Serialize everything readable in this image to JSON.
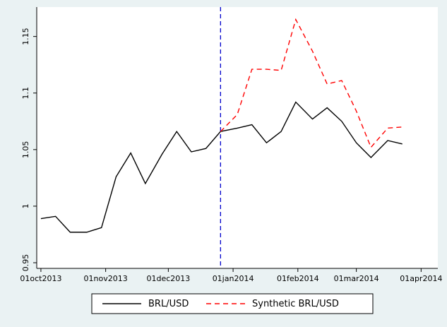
{
  "chart_data": {
    "type": "line",
    "x": [
      "2013-10-01",
      "2013-10-08",
      "2013-10-15",
      "2013-10-23",
      "2013-10-30",
      "2013-11-06",
      "2013-11-13",
      "2013-11-20",
      "2013-11-28",
      "2013-12-05",
      "2013-12-12",
      "2013-12-19",
      "2013-12-26",
      "2014-01-03",
      "2014-01-10",
      "2014-01-17",
      "2014-01-24",
      "2014-01-31",
      "2014-02-08",
      "2014-02-15",
      "2014-02-22",
      "2014-03-01",
      "2014-03-08",
      "2014-03-16",
      "2014-03-23"
    ],
    "series": [
      {
        "name": "BRL/USD",
        "color": "#000000",
        "dash": false,
        "values": [
          0.989,
          0.991,
          0.977,
          0.977,
          0.981,
          1.026,
          1.047,
          1.02,
          1.046,
          1.066,
          1.048,
          1.051,
          1.066,
          1.069,
          1.072,
          1.056,
          1.066,
          1.092,
          1.077,
          1.087,
          1.075,
          1.056,
          1.043,
          1.058,
          1.055
        ]
      },
      {
        "name": "Synthetic BRL/USD",
        "color": "#ff0000",
        "dash": true,
        "values": [
          null,
          null,
          null,
          null,
          null,
          null,
          null,
          null,
          null,
          null,
          null,
          null,
          1.066,
          1.081,
          1.121,
          1.121,
          1.12,
          1.165,
          1.137,
          1.108,
          1.111,
          1.084,
          1.052,
          1.069,
          1.07
        ]
      }
    ],
    "vline": "2013-12-26",
    "vline_color": "#0000cc",
    "xlim": [
      "2013-09-29",
      "2014-04-09"
    ],
    "xticks": [
      {
        "value": "2013-10-01",
        "label": "01oct2013"
      },
      {
        "value": "2013-11-01",
        "label": "01nov2013"
      },
      {
        "value": "2013-12-01",
        "label": "01dec2013"
      },
      {
        "value": "2014-01-01",
        "label": "01jan2014"
      },
      {
        "value": "2014-02-01",
        "label": "01feb2014"
      },
      {
        "value": "2014-03-01",
        "label": "01mar2014"
      },
      {
        "value": "2014-04-01",
        "label": "01apr2014"
      }
    ],
    "ylim": [
      0.945,
      1.176
    ],
    "yticks": [
      0.95,
      1,
      1.05,
      1.1,
      1.15
    ],
    "grid": false
  }
}
